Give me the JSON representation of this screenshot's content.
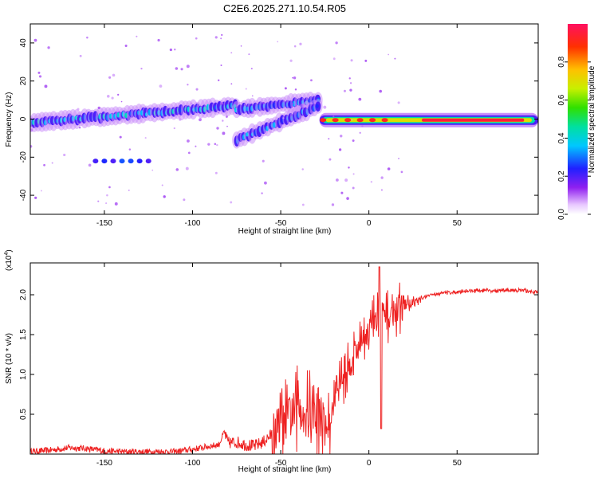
{
  "chart_data": [
    {
      "type": "heatmap",
      "title": "C2E6.2025.271.10.54.R05",
      "xlabel": "Height of straight line (km)",
      "ylabel": "Frequency (Hz)",
      "xlim": [
        -192,
        96
      ],
      "ylim": [
        -50,
        50
      ],
      "xticks": [
        -150,
        -100,
        -50,
        0,
        50
      ],
      "yticks": [
        -40,
        -20,
        0,
        20,
        40
      ],
      "colorbar": {
        "label": "Normalized spectral amplitude",
        "range": [
          0,
          1
        ],
        "ticks": [
          "0.0",
          "0.2",
          "0.4",
          "0.6",
          "0.8"
        ],
        "tick_values": [
          0,
          0.2,
          0.4,
          0.6,
          0.8
        ]
      },
      "features": [
        {
          "name": "main-band",
          "x_range": [
            -192,
            -75
          ],
          "frequency_hz": [
            -2,
            7
          ],
          "level": 0.35
        },
        {
          "name": "upper-branch",
          "x_range": [
            -75,
            -28
          ],
          "frequency_hz": [
            5,
            10
          ],
          "level": 0.3
        },
        {
          "name": "lower-branch",
          "x_range": [
            -75,
            -28
          ],
          "frequency_hz": [
            -11,
            7
          ],
          "level": 0.3
        },
        {
          "name": "stable-band",
          "x_range": [
            -28,
            96
          ],
          "frequency_hz": [
            -3,
            2
          ],
          "level": 0.95
        },
        {
          "name": "spurious-line",
          "x_range": [
            -155,
            -125
          ],
          "frequency_hz": [
            -22,
            -22
          ],
          "level": 0.2
        }
      ]
    },
    {
      "type": "line",
      "xlabel": "Height of straight line (km)",
      "ylabel": "SNR (10 * v/v)",
      "scale_label_base": "(x10",
      "scale_label_exp": "4",
      "scale_label_end": ")",
      "xlim": [
        -192,
        96
      ],
      "ylim": [
        0,
        2.4
      ],
      "xticks": [
        -150,
        -100,
        -50,
        0,
        50
      ],
      "yticks": [
        "0.5",
        "1.0",
        "1.5",
        "2.0"
      ],
      "ytick_values": [
        0.5,
        1.0,
        1.5,
        2.0
      ],
      "series": [
        {
          "name": "SNR",
          "color": "#ee2222",
          "x": [
            -192,
            -180,
            -170,
            -160,
            -150,
            -140,
            -130,
            -120,
            -110,
            -100,
            -95,
            -90,
            -85,
            -82,
            -80,
            -75,
            -70,
            -65,
            -60,
            -55,
            -50,
            -45,
            -40,
            -35,
            -30,
            -25,
            -22,
            -20,
            -18,
            -15,
            -12,
            -10,
            -8,
            -5,
            -3,
            0,
            2,
            4,
            6,
            8,
            10,
            12,
            15,
            18,
            20,
            25,
            30,
            35,
            40,
            50,
            60,
            70,
            80,
            90,
            96
          ],
          "y": [
            0.03,
            0.05,
            0.08,
            0.07,
            0.04,
            0.03,
            0.03,
            0.03,
            0.03,
            0.06,
            0.08,
            0.1,
            0.12,
            0.28,
            0.14,
            0.15,
            0.12,
            0.1,
            0.15,
            0.25,
            0.35,
            0.45,
            0.6,
            0.55,
            0.5,
            0.4,
            0.3,
            0.75,
            0.85,
            0.95,
            1.05,
            1.2,
            1.3,
            1.4,
            1.5,
            1.55,
            1.65,
            1.7,
            1.75,
            1.75,
            1.7,
            1.75,
            1.8,
            1.85,
            1.88,
            1.9,
            1.95,
            2.0,
            2.02,
            2.04,
            2.05,
            2.05,
            2.06,
            2.05,
            2.03
          ]
        }
      ]
    }
  ]
}
